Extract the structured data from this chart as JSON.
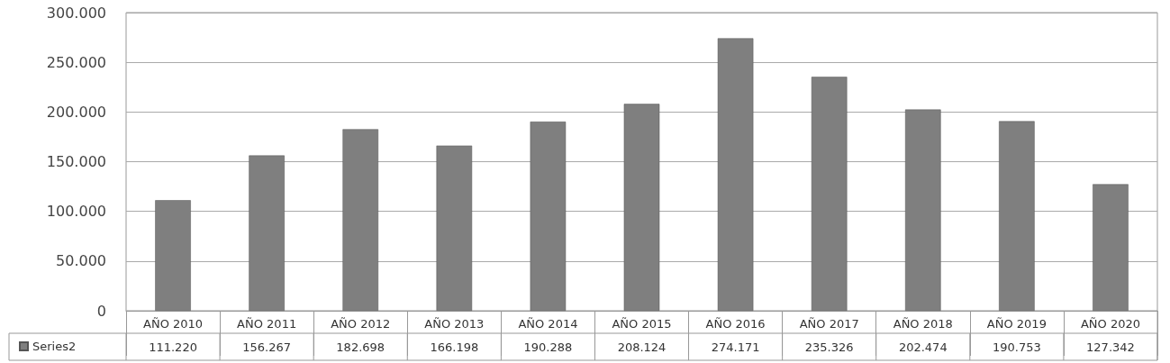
{
  "chart_data": {
    "type": "bar",
    "categories": [
      "AÑO 2010",
      "AÑO 2011",
      "AÑO 2012",
      "AÑO 2013",
      "AÑO 2014",
      "AÑO 2015",
      "AÑO 2016",
      "AÑO 2017",
      "AÑO 2018",
      "AÑO 2019",
      "AÑO 2020"
    ],
    "series": [
      {
        "name": "Series2",
        "color": "#7f7f7f",
        "values": [
          111220,
          156267,
          182698,
          166198,
          190288,
          208124,
          274171,
          235326,
          202474,
          190753,
          127342
        ],
        "value_labels": [
          "111.220",
          "156.267",
          "182.698",
          "166.198",
          "190.288",
          "208.124",
          "274.171",
          "235.326",
          "202.474",
          "190.753",
          "127.342"
        ]
      }
    ],
    "ylim": [
      0,
      300000
    ],
    "yticks": [
      {
        "value": 0,
        "label": "0"
      },
      {
        "value": 50000,
        "label": "50.000"
      },
      {
        "value": 100000,
        "label": "100.000"
      },
      {
        "value": 150000,
        "label": "150.000"
      },
      {
        "value": 200000,
        "label": "200.000"
      },
      {
        "value": 250000,
        "label": "250.000"
      },
      {
        "value": 300000,
        "label": "300.000"
      }
    ],
    "grid": "y",
    "legend": "bottom left"
  }
}
